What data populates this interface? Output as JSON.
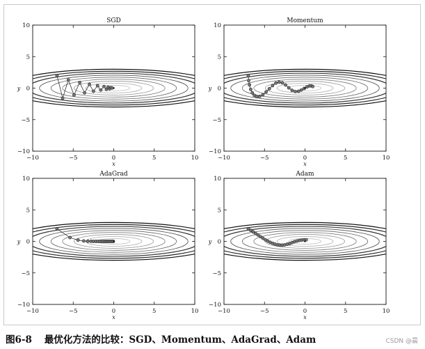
{
  "figure_label": "图6-8",
  "caption": "最优化方法的比较：SGD、Momentum、AdaGrad、Adam",
  "watermark": "CSDN @晨",
  "chart_data": [
    {
      "type": "line",
      "title": "SGD",
      "xlabel": "x",
      "ylabel": "y",
      "xlim": [
        -10,
        10
      ],
      "ylim": [
        -10,
        10
      ],
      "xticks": [
        -10,
        -5,
        0,
        5,
        10
      ],
      "yticks": [
        -10,
        -5,
        0,
        5,
        10
      ],
      "series": [
        {
          "x": [
            -7,
            -6.3,
            -5.6,
            -4.9,
            -4.2,
            -3.6,
            -3.0,
            -2.5,
            -2.0,
            -1.6,
            -1.2,
            -0.9,
            -0.7,
            -0.5,
            -0.35,
            -0.2
          ],
          "y": [
            2,
            -1.6,
            1.3,
            -1.1,
            0.9,
            -0.75,
            0.6,
            -0.5,
            0.4,
            -0.3,
            0.25,
            -0.2,
            0.15,
            -0.1,
            0.07,
            0.03
          ]
        }
      ]
    },
    {
      "type": "line",
      "title": "Momentum",
      "xlabel": "x",
      "ylabel": "y",
      "xlim": [
        -10,
        10
      ],
      "ylim": [
        -10,
        10
      ],
      "xticks": [
        -10,
        -5,
        0,
        5,
        10
      ],
      "yticks": [
        -10,
        -5,
        0,
        5,
        10
      ],
      "series": [
        {
          "x": [
            -7,
            -6.95,
            -6.85,
            -6.7,
            -6.5,
            -6.25,
            -5.95,
            -5.6,
            -5.2,
            -4.8,
            -4.4,
            -4.0,
            -3.6,
            -3.2,
            -2.8,
            -2.4,
            -2.0,
            -1.6,
            -1.2,
            -0.8,
            -0.45,
            -0.1,
            0.25,
            0.55,
            0.8,
            0.95
          ],
          "y": [
            2,
            1.2,
            0.5,
            -0.2,
            -0.75,
            -1.15,
            -1.35,
            -1.3,
            -1.05,
            -0.6,
            -0.1,
            0.4,
            0.8,
            0.95,
            0.85,
            0.5,
            0.05,
            -0.35,
            -0.55,
            -0.5,
            -0.3,
            -0.05,
            0.2,
            0.35,
            0.35,
            0.25
          ]
        }
      ]
    },
    {
      "type": "line",
      "title": "AdaGrad",
      "xlabel": "x",
      "ylabel": "y",
      "xlim": [
        -10,
        10
      ],
      "ylim": [
        -10,
        10
      ],
      "xticks": [
        -10,
        -5,
        0,
        5,
        10
      ],
      "yticks": [
        -10,
        -5,
        0,
        5,
        10
      ],
      "series": [
        {
          "x": [
            -7,
            -5.4,
            -4.4,
            -3.7,
            -3.2,
            -2.8,
            -2.5,
            -2.2,
            -1.95,
            -1.7,
            -1.5,
            -1.3,
            -1.1,
            -0.95,
            -0.8,
            -0.65,
            -0.5,
            -0.35,
            -0.2,
            -0.05
          ],
          "y": [
            2,
            0.6,
            0.2,
            0.06,
            0.02,
            0.01,
            0.0,
            0.0,
            0.0,
            0.0,
            0.0,
            0.0,
            0.0,
            0.0,
            0.0,
            0.0,
            0.0,
            0.0,
            0.0,
            0.0
          ]
        }
      ]
    },
    {
      "type": "line",
      "title": "Adam",
      "xlabel": "x",
      "ylabel": "y",
      "xlim": [
        -10,
        10
      ],
      "ylim": [
        -10,
        10
      ],
      "xticks": [
        -10,
        -5,
        0,
        5,
        10
      ],
      "yticks": [
        -10,
        -5,
        0,
        5,
        10
      ],
      "series": [
        {
          "x": [
            -7,
            -6.7,
            -6.4,
            -6.1,
            -5.8,
            -5.5,
            -5.2,
            -4.9,
            -4.6,
            -4.3,
            -4.0,
            -3.7,
            -3.4,
            -3.1,
            -2.8,
            -2.5,
            -2.2,
            -1.9,
            -1.6,
            -1.3,
            -1.0,
            -0.7,
            -0.4,
            -0.1,
            0.15
          ],
          "y": [
            2,
            1.75,
            1.5,
            1.25,
            1.0,
            0.75,
            0.5,
            0.25,
            0.05,
            -0.15,
            -0.3,
            -0.45,
            -0.55,
            -0.6,
            -0.6,
            -0.55,
            -0.45,
            -0.35,
            -0.2,
            -0.05,
            0.05,
            0.15,
            0.2,
            0.25,
            0.25
          ]
        }
      ]
    }
  ]
}
